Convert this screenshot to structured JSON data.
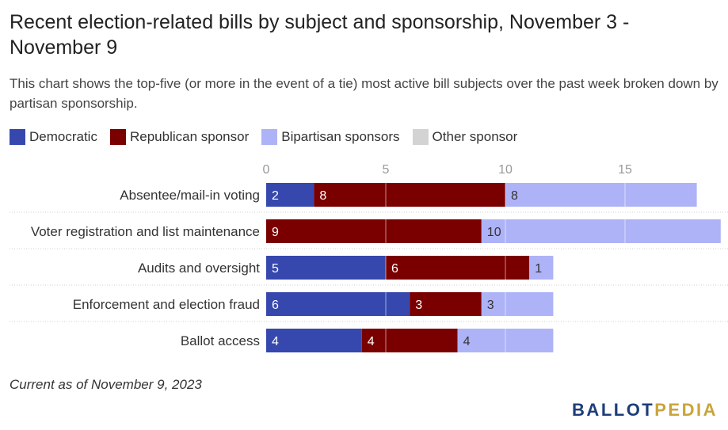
{
  "title": "Recent election-related bills by subject and sponsorship, November 3 - November 9",
  "subtitle": "This chart shows the top-five (or more in the event of a tie) most active bill subjects over the past week broken down by partisan sponsorship.",
  "footnote": "Current as of November 9, 2023",
  "logo": {
    "part1": "BALLOT",
    "part2": "PEDIA"
  },
  "colors": {
    "democratic": "#3648ad",
    "republican": "#7a0000",
    "bipartisan": "#aeb3f7",
    "other": "#d3d3d3"
  },
  "chart_data": {
    "type": "bar",
    "orientation": "horizontal",
    "stacked": true,
    "categories": [
      "Absentee/mail-in voting",
      "Voter registration and list maintenance",
      "Audits and oversight",
      "Enforcement and election fraud",
      "Ballot access"
    ],
    "series": [
      {
        "name": "Democratic",
        "color": "#3648ad",
        "values": [
          2,
          0,
          5,
          6,
          4
        ]
      },
      {
        "name": "Republican sponsor",
        "color": "#7a0000",
        "values": [
          8,
          9,
          6,
          3,
          4
        ]
      },
      {
        "name": "Bipartisan sponsors",
        "color": "#aeb3f7",
        "values": [
          8,
          10,
          1,
          3,
          4
        ]
      },
      {
        "name": "Other sponsor",
        "color": "#d3d3d3",
        "values": [
          0,
          0,
          0,
          0,
          0
        ]
      }
    ],
    "xticks": [
      "0",
      "5",
      "10",
      "15"
    ],
    "xlim": [
      0,
      19
    ],
    "grid": true,
    "legend_position": "top-left"
  }
}
